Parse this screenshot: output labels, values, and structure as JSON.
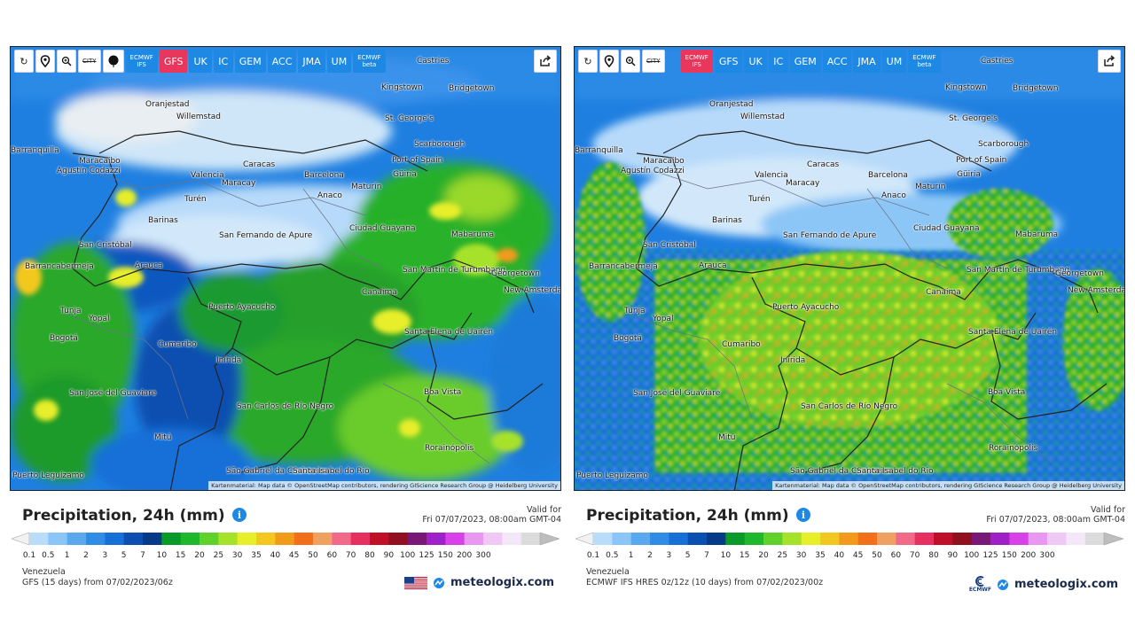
{
  "toolbar": {
    "city_label": "CITY",
    "models_left": [
      {
        "label": "ECMWF IFS",
        "small": true,
        "active": false
      },
      {
        "label": "GFS",
        "small": false,
        "active": true
      },
      {
        "label": "UK",
        "small": false,
        "active": false
      },
      {
        "label": "IC",
        "small": false,
        "active": false
      },
      {
        "label": "GEM",
        "small": false,
        "active": false
      },
      {
        "label": "ACC",
        "small": false,
        "active": false
      },
      {
        "label": "JMA",
        "small": false,
        "active": false
      },
      {
        "label": "UM",
        "small": false,
        "active": false
      },
      {
        "label": "ECMWF beta",
        "small": true,
        "active": false
      }
    ],
    "models_right": [
      {
        "label": "ECMWF IFS",
        "small": true,
        "active": true
      },
      {
        "label": "GFS",
        "small": false,
        "active": false
      },
      {
        "label": "UK",
        "small": false,
        "active": false
      },
      {
        "label": "IC",
        "small": false,
        "active": false
      },
      {
        "label": "GEM",
        "small": false,
        "active": false
      },
      {
        "label": "ACC",
        "small": false,
        "active": false
      },
      {
        "label": "JMA",
        "small": false,
        "active": false
      },
      {
        "label": "UM",
        "small": false,
        "active": false
      },
      {
        "label": "ECMWF beta",
        "small": true,
        "active": false
      }
    ]
  },
  "places": [
    "Castries",
    "Kingstown",
    "Bridgetown",
    "Oranjestad",
    "Willemstad",
    "St. George's",
    "Scarborough",
    "Port of Spain",
    "Maracaibo",
    "Caracas",
    "Barcelona",
    "Güiria",
    "Valencia",
    "Maracay",
    "Maturín",
    "Anaco",
    "Agustín Codazzi",
    "Turén",
    "Barinas",
    "San Fernando de Apure",
    "Ciudad Guayana",
    "Mabaruma",
    "San Cristóbal",
    "Arauca",
    "Barrancabermeja",
    "San Martín de Turumbang",
    "Georgetown",
    "New Amsterdam",
    "Canaima",
    "Tunja",
    "Yopal",
    "Puerto Ayacucho",
    "Bogotá",
    "Cumaribo",
    "Santa Elena de Uairén",
    "Inírida",
    "San José del Guaviare",
    "Boa Vista",
    "San Carlos de Río Negro",
    "Mitú",
    "Rorainópolis",
    "São Gabriel da Cachoeira",
    "Santa Isabel do Rio",
    "Puerto Leguízamo",
    "Barranquilla"
  ],
  "attribution": "Kartenmaterial: Map data © OpenStreetMap contributors, rendering GIScience Research Group @ Heidelberg University",
  "left": {
    "title": "Precipitation, 24h (mm)",
    "valid_label": "Valid for",
    "valid_time": "Fri 07/07/2023, 08:00am GMT-04",
    "region": "Venezuela",
    "model_run": "GFS (15 days) from 07/02/2023/06z",
    "brand": "meteologix.com"
  },
  "right": {
    "title": "Precipitation, 24h (mm)",
    "valid_label": "Valid for",
    "valid_time": "Fri 07/07/2023, 08:00am GMT-04",
    "region": "Venezuela",
    "model_run": "ECMWF IFS HRES 0z/12z (10 days) from 07/02/2023/00z",
    "brand": "meteologix.com",
    "logo_text": "ECMWF"
  },
  "scale": {
    "ticks": [
      "0.1",
      "0.5",
      "1",
      "2",
      "3",
      "5",
      "7",
      "10",
      "15",
      "20",
      "25",
      "30",
      "35",
      "40",
      "45",
      "50",
      "60",
      "70",
      "80",
      "90",
      "100",
      "125",
      "150",
      "200",
      "300"
    ],
    "colors": [
      "#f2f2f2",
      "#b9dcfb",
      "#8cc6f7",
      "#5aa9ef",
      "#2f8de6",
      "#1670d8",
      "#0b4fb0",
      "#073a86",
      "#0a9a2a",
      "#1fb82c",
      "#5fd12a",
      "#a7e22a",
      "#e7ee2a",
      "#f2c81f",
      "#f29a1c",
      "#f2701a",
      "#f0a060",
      "#f26a8a",
      "#e83060",
      "#c01028",
      "#901020",
      "#7a1878",
      "#a020c8",
      "#d840e8",
      "#e898f0",
      "#f0c8f4",
      "#f4e8f8",
      "#dcdcdc",
      "#bdbdbd"
    ]
  }
}
